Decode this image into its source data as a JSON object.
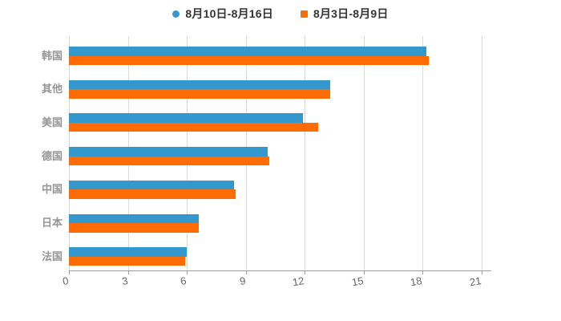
{
  "chart_data": {
    "type": "bar",
    "orientation": "horizontal",
    "title": "",
    "categories": [
      "韩国",
      "其他",
      "美国",
      "德国",
      "中国",
      "日本",
      "法国"
    ],
    "series": [
      {
        "name": "8月10日-8月16日",
        "color": "#3498CD",
        "marker": "circle",
        "values": [
          18.2,
          13.3,
          11.9,
          10.1,
          8.4,
          6.6,
          6.0
        ]
      },
      {
        "name": "8月3日-8月9日",
        "color": "#FF6C05",
        "marker": "square",
        "values": [
          18.3,
          13.3,
          12.7,
          10.2,
          8.5,
          6.6,
          5.9
        ]
      }
    ],
    "xlim": [
      0,
      21
    ],
    "xticks": [
      0,
      3,
      6,
      9,
      12,
      15,
      18,
      21
    ],
    "grid": true,
    "legend_position": "top",
    "colors": {
      "grid": "#DBDBDB",
      "axis": "#9C9C9C",
      "tick_label": "#666666",
      "category_label": "#949494",
      "legend_text": "#333333",
      "background": "#FFFFFF"
    }
  }
}
